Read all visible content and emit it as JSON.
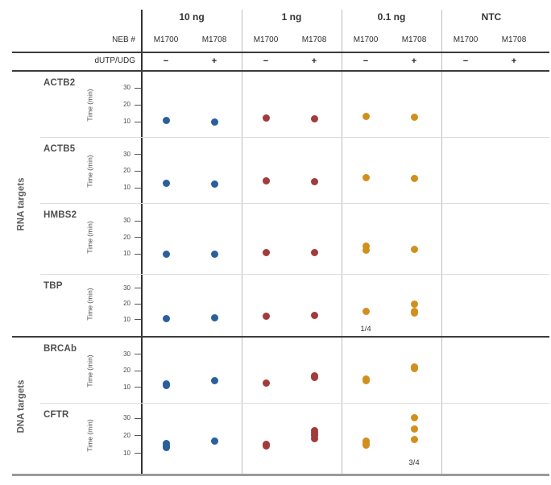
{
  "figure": {
    "neb_row_label": "NEB #",
    "dutp_row_label": "dUTP/UDG",
    "y_axis_label": "Time (min)",
    "y_ticks": [
      10,
      20,
      30
    ],
    "column_groups": [
      {
        "label": "10 ng",
        "columns": [
          "M1700",
          "M1708"
        ],
        "dutp": [
          "−",
          "+"
        ],
        "dot_color": "#2a5f9c"
      },
      {
        "label": "1 ng",
        "columns": [
          "M1700",
          "M1708"
        ],
        "dutp": [
          "−",
          "+"
        ],
        "dot_color": "#a23b3b"
      },
      {
        "label": "0.1 ng",
        "columns": [
          "M1700",
          "M1708"
        ],
        "dutp": [
          "−",
          "+"
        ],
        "dot_color": "#d28f1e"
      },
      {
        "label": "NTC",
        "columns": [
          "M1700",
          "M1708"
        ],
        "dutp": [
          "−",
          "+"
        ],
        "dot_color": "#888888"
      }
    ],
    "row_groups": [
      {
        "label": "RNA targets",
        "targets": [
          "ACTB2",
          "ACTB5",
          "HMBS2",
          "TBP"
        ]
      },
      {
        "label": "DNA targets",
        "targets": [
          "BRCAb",
          "CFTR"
        ]
      }
    ]
  },
  "chart_data": {
    "type": "scatter",
    "title": "",
    "xlabel": "",
    "ylabel": "Time (min)",
    "ylim": [
      5,
      38
    ],
    "y_ticks": [
      10,
      20,
      30
    ],
    "grid": false,
    "legend_position": "none",
    "column_groups": [
      "10 ng",
      "1 ng",
      "0.1 ng",
      "NTC"
    ],
    "columns": [
      "M1700",
      "M1708"
    ],
    "rows": [
      {
        "target": "ACTB2",
        "row_group": "RNA targets",
        "series": {
          "10 ng": {
            "M1700": [
              10.5
            ],
            "M1708": [
              10
            ]
          },
          "1 ng": {
            "M1700": [
              12
            ],
            "M1708": [
              11.5
            ]
          },
          "0.1 ng": {
            "M1700": [
              13
            ],
            "M1708": [
              12.5
            ]
          },
          "NTC": {
            "M1700": [],
            "M1708": []
          }
        },
        "annotations": []
      },
      {
        "target": "ACTB5",
        "row_group": "RNA targets",
        "series": {
          "10 ng": {
            "M1700": [
              12.5
            ],
            "M1708": [
              12
            ]
          },
          "1 ng": {
            "M1700": [
              14
            ],
            "M1708": [
              13.5
            ]
          },
          "0.1 ng": {
            "M1700": [
              16
            ],
            "M1708": [
              15.5
            ]
          },
          "NTC": {
            "M1700": [],
            "M1708": []
          }
        },
        "annotations": []
      },
      {
        "target": "HMBS2",
        "row_group": "RNA targets",
        "series": {
          "10 ng": {
            "M1700": [
              10
            ],
            "M1708": [
              10
            ]
          },
          "1 ng": {
            "M1700": [
              10.5
            ],
            "M1708": [
              10.5
            ]
          },
          "0.1 ng": {
            "M1700": [
              14.5,
              12
            ],
            "M1708": [
              12.5
            ]
          },
          "NTC": {
            "M1700": [],
            "M1708": []
          }
        },
        "annotations": []
      },
      {
        "target": "TBP",
        "row_group": "RNA targets",
        "series": {
          "10 ng": {
            "M1700": [
              10.5
            ],
            "M1708": [
              11
            ]
          },
          "1 ng": {
            "M1700": [
              12
            ],
            "M1708": [
              12.5
            ]
          },
          "0.1 ng": {
            "M1700": [
              15
            ],
            "M1708": [
              19.5,
              15,
              14
            ]
          },
          "NTC": {
            "M1700": [],
            "M1708": []
          }
        },
        "annotations": [
          {
            "group": "0.1 ng",
            "column": "M1700",
            "text": "1/4"
          }
        ]
      },
      {
        "target": "BRCAb",
        "row_group": "DNA targets",
        "series": {
          "10 ng": {
            "M1700": [
              12,
              11
            ],
            "M1708": [
              14
            ]
          },
          "1 ng": {
            "M1700": [
              12.5
            ],
            "M1708": [
              17,
              16
            ]
          },
          "0.1 ng": {
            "M1700": [
              15,
              14
            ],
            "M1708": [
              22,
              21
            ]
          },
          "NTC": {
            "M1700": [],
            "M1708": []
          }
        },
        "annotations": []
      },
      {
        "target": "CFTR",
        "row_group": "DNA targets",
        "series": {
          "10 ng": {
            "M1700": [
              15.5,
              14,
              13
            ],
            "M1708": [
              17
            ]
          },
          "1 ng": {
            "M1700": [
              15,
              14
            ],
            "M1708": [
              23,
              21.5,
              20,
              18.5
            ]
          },
          "0.1 ng": {
            "M1700": [
              17,
              15.5,
              14.5
            ],
            "M1708": [
              30.5,
              24,
              18
            ]
          },
          "NTC": {
            "M1700": [],
            "M1708": []
          }
        },
        "annotations": [
          {
            "group": "0.1 ng",
            "column": "M1708",
            "text": "3/4"
          }
        ]
      }
    ]
  }
}
